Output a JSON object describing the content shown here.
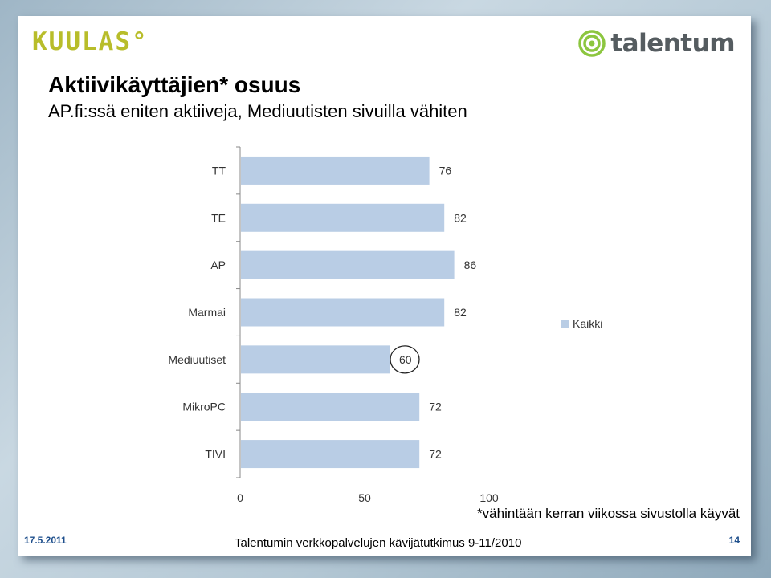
{
  "header": {
    "logo_left": "KUULAS°",
    "logo_right": "talentum",
    "title": "Aktiivikäyttäjien* osuus",
    "subtitle": "AP.fi:ssä eniten aktiiveja, Mediuutisten sivuilla vähiten"
  },
  "chart_data": {
    "type": "bar",
    "orientation": "horizontal",
    "categories": [
      "TT",
      "TE",
      "AP",
      "Marmai",
      "Mediuutiset",
      "MikroPC",
      "TIVI"
    ],
    "series": [
      {
        "name": "Kaikki",
        "values": [
          76,
          82,
          86,
          82,
          60,
          72,
          72
        ],
        "color": "#b9cde5"
      }
    ],
    "data_labels": [
      "76",
      "82",
      "86",
      "82",
      "60",
      "72",
      "72"
    ],
    "highlighted_category": "Mediuutiset",
    "x_ticks": [
      0,
      50,
      100
    ],
    "x_tick_labels": [
      "0",
      "50",
      "100"
    ],
    "xlim": [
      0,
      100
    ],
    "grid": false,
    "legend_position": "right",
    "title": "",
    "xlabel": "",
    "ylabel": ""
  },
  "footnote": "*vähintään kerran viikossa sivustolla käyvät",
  "footer": {
    "date": "17.5.2011",
    "source": "Talentumin verkkopalvelujen kävijätutkimus 9-11/2010",
    "page": "14"
  }
}
